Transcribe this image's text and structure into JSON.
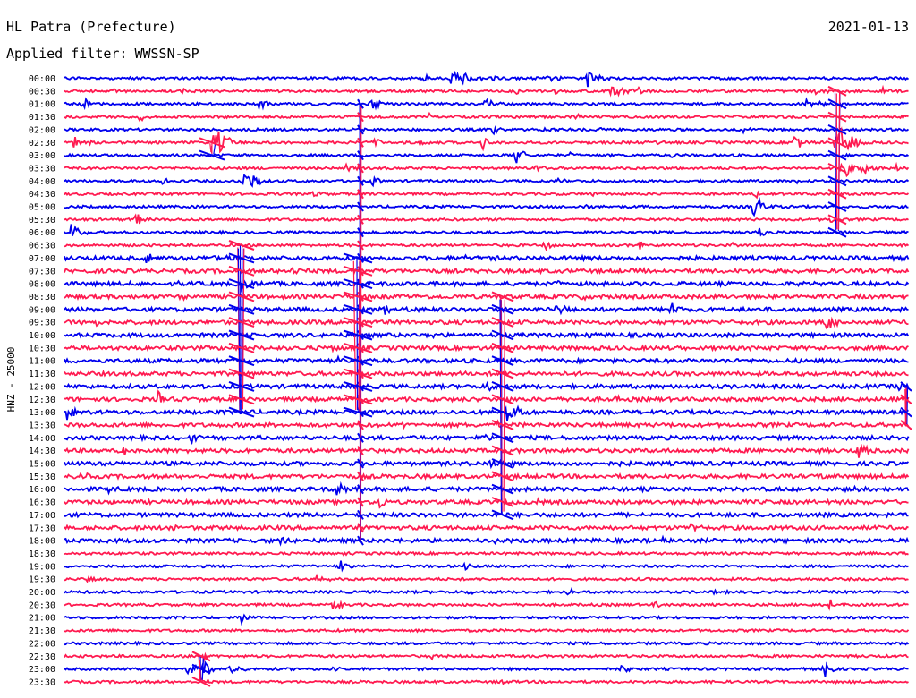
{
  "header": {
    "station": "HL Patra (Prefecture)",
    "date": "2021-01-13",
    "filter_label": "Applied filter:",
    "filter_value": "WWSSN-SP"
  },
  "chart_data": {
    "type": "line",
    "title": "HL Patra (Prefecture)",
    "ylabel": "HNZ - 25000",
    "channel": "HNZ",
    "scale": 25000,
    "filter": "WWSSN-SP",
    "date": "2021-01-13",
    "trace_minutes": 30,
    "colors": [
      "#0000ee",
      "#ff1a50"
    ],
    "row_labels": [
      "00:00",
      "00:30",
      "01:00",
      "01:30",
      "02:00",
      "02:30",
      "03:00",
      "03:30",
      "04:00",
      "04:30",
      "05:00",
      "05:30",
      "06:00",
      "06:30",
      "07:00",
      "07:30",
      "08:00",
      "08:30",
      "09:00",
      "09:30",
      "10:00",
      "10:30",
      "11:00",
      "11:30",
      "12:00",
      "12:30",
      "13:00",
      "13:30",
      "14:00",
      "14:30",
      "15:00",
      "15:30",
      "16:00",
      "16:30",
      "17:00",
      "17:30",
      "18:00",
      "18:30",
      "19:00",
      "19:30",
      "20:00",
      "20:30",
      "21:00",
      "21:30",
      "22:00",
      "22:30",
      "23:00",
      "23:30"
    ]
  }
}
